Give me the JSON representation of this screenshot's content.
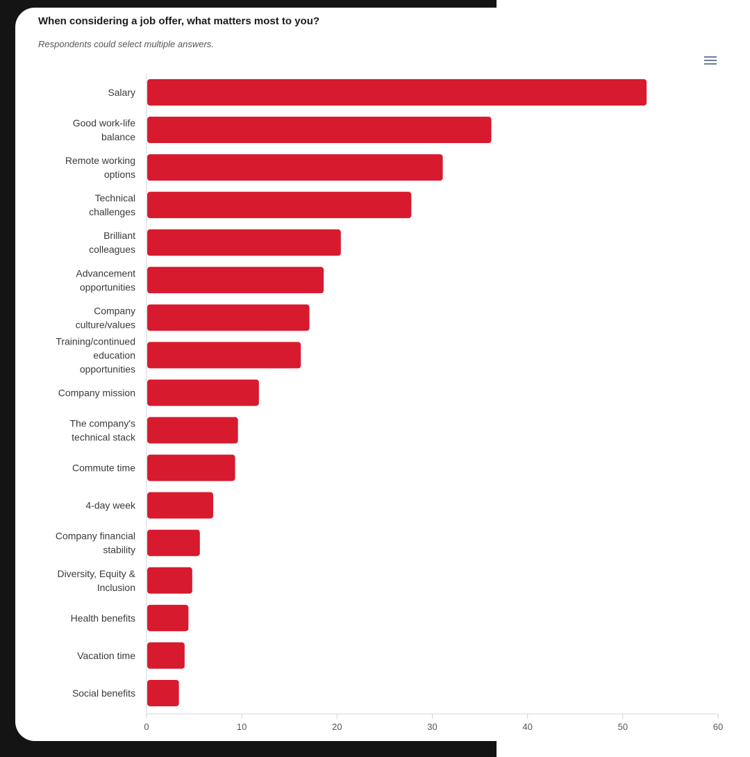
{
  "chart_data": {
    "type": "bar",
    "orientation": "horizontal",
    "title": "When considering a job offer, what matters most to you?",
    "subtitle": "Respondents could select multiple answers.",
    "categories": [
      [
        "Salary"
      ],
      [
        "Good work-life",
        "balance"
      ],
      [
        "Remote working",
        "options"
      ],
      [
        "Technical",
        "challenges"
      ],
      [
        "Brilliant",
        "colleagues"
      ],
      [
        "Advancement",
        "opportunities"
      ],
      [
        "Company",
        "culture/values"
      ],
      [
        "Training/continued",
        "education",
        "opportunities"
      ],
      [
        "Company mission"
      ],
      [
        "The company's",
        "technical stack"
      ],
      [
        "Commute time"
      ],
      [
        "4-day week"
      ],
      [
        "Company financial",
        "stability"
      ],
      [
        "Diversity, Equity &",
        "Inclusion"
      ],
      [
        "Health benefits"
      ],
      [
        "Vacation time"
      ],
      [
        "Social benefits"
      ]
    ],
    "values": [
      52.5,
      36.2,
      31.1,
      27.8,
      20.4,
      18.6,
      17.1,
      16.2,
      11.8,
      9.6,
      9.3,
      7.0,
      5.6,
      4.8,
      4.4,
      4.0,
      3.4
    ],
    "xlim": [
      0,
      60
    ],
    "xticks": [
      0,
      10,
      20,
      30,
      40,
      50,
      60
    ],
    "xlabel": "",
    "ylabel": "",
    "bar_color": "#d71a2d",
    "grid": false
  },
  "ui": {
    "menu_icon": "hamburger-menu-icon"
  }
}
